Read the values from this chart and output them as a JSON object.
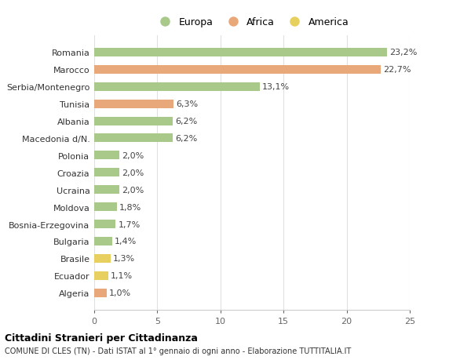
{
  "countries": [
    "Algeria",
    "Ecuador",
    "Brasile",
    "Bulgaria",
    "Bosnia-Erzegovina",
    "Moldova",
    "Ucraina",
    "Croazia",
    "Polonia",
    "Macedonia d/N.",
    "Albania",
    "Tunisia",
    "Serbia/Montenegro",
    "Marocco",
    "Romania"
  ],
  "values": [
    1.0,
    1.1,
    1.3,
    1.4,
    1.7,
    1.8,
    2.0,
    2.0,
    2.0,
    6.2,
    6.2,
    6.3,
    13.1,
    22.7,
    23.2
  ],
  "continents": [
    "Africa",
    "America",
    "America",
    "Europa",
    "Europa",
    "Europa",
    "Europa",
    "Europa",
    "Europa",
    "Europa",
    "Europa",
    "Africa",
    "Europa",
    "Africa",
    "Europa"
  ],
  "colors": {
    "Europa": "#a8c98a",
    "Africa": "#e8a87a",
    "America": "#e8d060"
  },
  "legend": [
    "Europa",
    "Africa",
    "America"
  ],
  "legend_colors": [
    "#a8c98a",
    "#e8a87a",
    "#e8d060"
  ],
  "title": "Cittadini Stranieri per Cittadinanza",
  "subtitle": "COMUNE DI CLES (TN) - Dati ISTAT al 1° gennaio di ogni anno - Elaborazione TUTTITALIA.IT",
  "xlim": [
    0,
    25
  ],
  "xticks": [
    0,
    5,
    10,
    15,
    20,
    25
  ],
  "bg_color": "#ffffff",
  "grid_color": "#e0e0e0",
  "bar_height": 0.5
}
